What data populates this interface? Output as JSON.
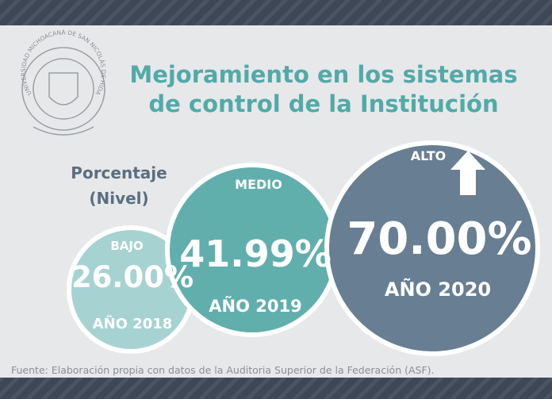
{
  "header": {
    "title_lines": [
      "Mejoramiento en los sistemas",
      "de control de la Institución"
    ],
    "logo_text": "UNIVERSIDAD MICHOACANA DE SAN NICOLÁS DE HIDALGO"
  },
  "label_lines": [
    "Porcentaje",
    "(Nivel)"
  ],
  "items": [
    {
      "level": "BAJO",
      "value": "26.00%",
      "year": "AÑO 2018"
    },
    {
      "level": "MEDIO",
      "value": "41.99%",
      "year": "AÑO 2019"
    },
    {
      "level": "ALTO",
      "value": "70.00%",
      "year": "AÑO 2020"
    }
  ],
  "source": "Fuente: Elaboración propia con datos de la Auditoria Superior de la Federación (ASF)."
}
